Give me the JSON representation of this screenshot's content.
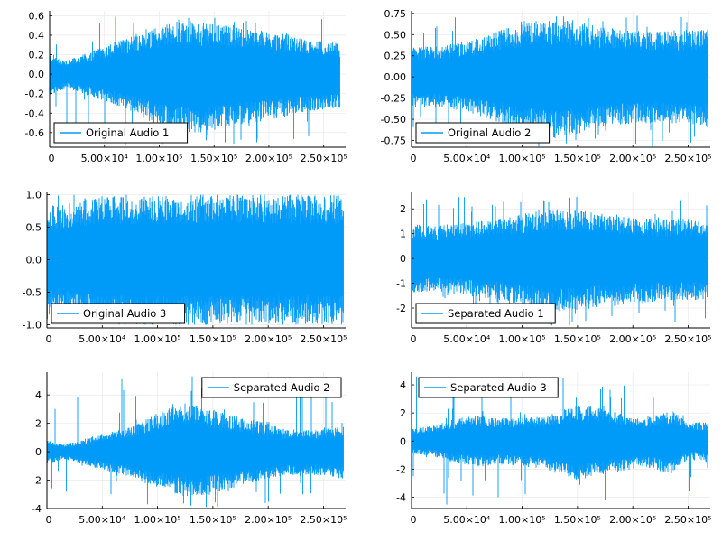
{
  "chart_data": [
    {
      "type": "line",
      "series": [
        {
          "name": "Original Audio 1",
          "color": "#009af9"
        }
      ],
      "xlim": [
        0,
        270000
      ],
      "ylim": [
        -0.75,
        0.65
      ],
      "xticks": [
        0,
        50000,
        100000,
        150000,
        200000,
        250000
      ],
      "xtick_labels": [
        "0",
        "5.00×10⁴",
        "1.00×10⁵",
        "1.50×10⁵",
        "2.00×10⁵",
        "2.50×10⁵"
      ],
      "yticks": [
        -0.6,
        -0.4,
        -0.2,
        0.0,
        0.2,
        0.4,
        0.6
      ],
      "ytick_labels": [
        "-0.6",
        "-0.4",
        "-0.2",
        "0.0",
        "0.2",
        "0.4",
        "0.6"
      ],
      "legend_position": "bottom-left",
      "grid": true,
      "envelope": {
        "x": [
          0,
          15000,
          35000,
          60000,
          90000,
          115000,
          135000,
          160000,
          185000,
          210000,
          235000,
          265000
        ],
        "upper": [
          0.22,
          0.14,
          0.22,
          0.34,
          0.45,
          0.55,
          0.52,
          0.5,
          0.46,
          0.42,
          0.35,
          0.32
        ],
        "lower": [
          -0.23,
          -0.14,
          -0.22,
          -0.32,
          -0.48,
          -0.62,
          -0.6,
          -0.56,
          -0.5,
          -0.45,
          -0.38,
          -0.35
        ],
        "peak_max": 0.6,
        "peak_min": -0.73
      }
    },
    {
      "type": "line",
      "series": [
        {
          "name": "Original Audio 2",
          "color": "#009af9"
        }
      ],
      "xlim": [
        0,
        270000
      ],
      "ylim": [
        -0.83,
        0.78
      ],
      "xticks": [
        0,
        50000,
        100000,
        150000,
        200000,
        250000
      ],
      "xtick_labels": [
        "0",
        "5.00×10⁴",
        "1.00×10⁵",
        "1.50×10⁵",
        "2.00×10⁵",
        "2.50×10⁵"
      ],
      "yticks": [
        -0.75,
        -0.5,
        -0.25,
        0.0,
        0.25,
        0.5,
        0.75
      ],
      "ytick_labels": [
        "-0.75",
        "-0.50",
        "-0.25",
        "0.00",
        "0.25",
        "0.50",
        "0.75"
      ],
      "legend_position": "bottom-left",
      "grid": true,
      "envelope": {
        "x": [
          0,
          20000,
          50000,
          80000,
          110000,
          130000,
          160000,
          190000,
          220000,
          250000,
          268000
        ],
        "upper": [
          0.36,
          0.36,
          0.42,
          0.55,
          0.66,
          0.7,
          0.62,
          0.56,
          0.54,
          0.56,
          0.58
        ],
        "lower": [
          -0.36,
          -0.36,
          -0.42,
          -0.55,
          -0.66,
          -0.72,
          -0.64,
          -0.56,
          -0.54,
          -0.56,
          -0.58
        ],
        "peak_max": 0.73,
        "peak_min": -0.83
      }
    },
    {
      "type": "line",
      "series": [
        {
          "name": "Original Audio 3",
          "color": "#009af9"
        }
      ],
      "xlim": [
        0,
        270000
      ],
      "ylim": [
        -1.05,
        1.05
      ],
      "xticks": [
        0,
        50000,
        100000,
        150000,
        200000,
        250000
      ],
      "xtick_labels": [
        "0",
        "5.00×10⁴",
        "1.00×10⁵",
        "1.50×10⁵",
        "2.00×10⁵",
        "2.50×10⁵"
      ],
      "yticks": [
        -1.0,
        -0.5,
        0.0,
        0.5,
        1.0
      ],
      "ytick_labels": [
        "-1.0",
        "-0.5",
        "0.0",
        "0.5",
        "1.0"
      ],
      "legend_position": "bottom-left",
      "grid": true,
      "envelope": {
        "x": [
          0,
          10000,
          25000,
          45000,
          70000,
          100000,
          150000,
          200000,
          250000,
          268000
        ],
        "upper": [
          0.86,
          0.82,
          0.9,
          0.96,
          0.99,
          1.0,
          1.0,
          1.0,
          0.99,
          0.98
        ],
        "lower": [
          -0.86,
          -0.82,
          -0.9,
          -0.96,
          -0.99,
          -1.0,
          -1.0,
          -1.0,
          -0.99,
          -0.98
        ],
        "peak_max": 1.0,
        "peak_min": -1.0
      }
    },
    {
      "type": "line",
      "series": [
        {
          "name": "Separated Audio 1",
          "color": "#009af9"
        }
      ],
      "xlim": [
        0,
        270000
      ],
      "ylim": [
        -2.8,
        2.7
      ],
      "xticks": [
        0,
        50000,
        100000,
        150000,
        200000,
        250000
      ],
      "xtick_labels": [
        "0",
        "5.00×10⁴",
        "1.00×10⁵",
        "1.50×10⁵",
        "2.00×10⁵",
        "2.50×10⁵"
      ],
      "yticks": [
        -2,
        -1,
        0,
        1,
        2
      ],
      "ytick_labels": [
        "-2",
        "-1",
        "0",
        "1",
        "2"
      ],
      "legend_position": "bottom-left",
      "grid": true,
      "envelope": {
        "x": [
          0,
          20000,
          50000,
          80000,
          110000,
          130000,
          160000,
          190000,
          220000,
          250000,
          268000
        ],
        "upper": [
          1.4,
          1.3,
          1.45,
          1.6,
          1.9,
          2.0,
          1.9,
          1.75,
          1.6,
          1.6,
          1.55
        ],
        "lower": [
          -1.4,
          -1.3,
          -1.5,
          -1.7,
          -2.0,
          -2.2,
          -2.05,
          -1.9,
          -1.75,
          -1.7,
          -1.7
        ],
        "peak_max": 2.5,
        "peak_min": -2.75
      }
    },
    {
      "type": "line",
      "series": [
        {
          "name": "Separated Audio 2",
          "color": "#009af9"
        }
      ],
      "xlim": [
        0,
        270000
      ],
      "ylim": [
        -4.0,
        5.6
      ],
      "xticks": [
        0,
        50000,
        100000,
        150000,
        200000,
        250000
      ],
      "xtick_labels": [
        "0",
        "5.00×10⁴",
        "1.00×10⁵",
        "1.50×10⁵",
        "2.00×10⁵",
        "2.50×10⁵"
      ],
      "yticks": [
        -4,
        -2,
        0,
        2,
        4
      ],
      "ytick_labels": [
        "-4",
        "-2",
        "0",
        "2",
        "4"
      ],
      "legend_position": "top-right",
      "grid": true,
      "envelope": {
        "x": [
          0,
          15000,
          30000,
          50000,
          75000,
          100000,
          125000,
          145000,
          165000,
          190000,
          215000,
          240000,
          268000
        ],
        "upper": [
          0.8,
          0.5,
          0.8,
          1.3,
          1.8,
          2.8,
          3.4,
          3.1,
          2.6,
          2.2,
          1.6,
          1.5,
          1.8
        ],
        "lower": [
          -0.9,
          -0.5,
          -0.8,
          -1.3,
          -1.8,
          -2.6,
          -3.2,
          -3.0,
          -2.6,
          -2.1,
          -1.7,
          -1.6,
          -1.9
        ],
        "peak_max": 5.3,
        "peak_min": -3.9
      }
    },
    {
      "type": "line",
      "series": [
        {
          "name": "Separated Audio 3",
          "color": "#009af9"
        }
      ],
      "xlim": [
        0,
        270000
      ],
      "ylim": [
        -4.8,
        4.9
      ],
      "xticks": [
        0,
        50000,
        100000,
        150000,
        200000,
        250000
      ],
      "xtick_labels": [
        "0",
        "5.00×10⁴",
        "1.00×10⁵",
        "1.50×10⁵",
        "2.00×10⁵",
        "2.50×10⁵"
      ],
      "yticks": [
        -4,
        -2,
        0,
        2,
        4
      ],
      "ytick_labels": [
        "-4",
        "-2",
        "0",
        "2",
        "4"
      ],
      "legend_position": "top-left",
      "grid": true,
      "envelope": {
        "x": [
          0,
          20000,
          40000,
          60000,
          90000,
          120000,
          150000,
          170000,
          190000,
          210000,
          235000,
          250000,
          268000
        ],
        "upper": [
          0.9,
          1.1,
          1.6,
          1.8,
          1.6,
          1.8,
          2.6,
          2.4,
          2.0,
          1.7,
          2.2,
          1.3,
          1.4
        ],
        "lower": [
          -0.9,
          -1.1,
          -1.6,
          -1.8,
          -1.7,
          -2.0,
          -2.8,
          -2.5,
          -2.2,
          -1.8,
          -2.4,
          -1.3,
          -1.5
        ],
        "peak_max": 4.6,
        "peak_min": -4.6
      }
    }
  ]
}
